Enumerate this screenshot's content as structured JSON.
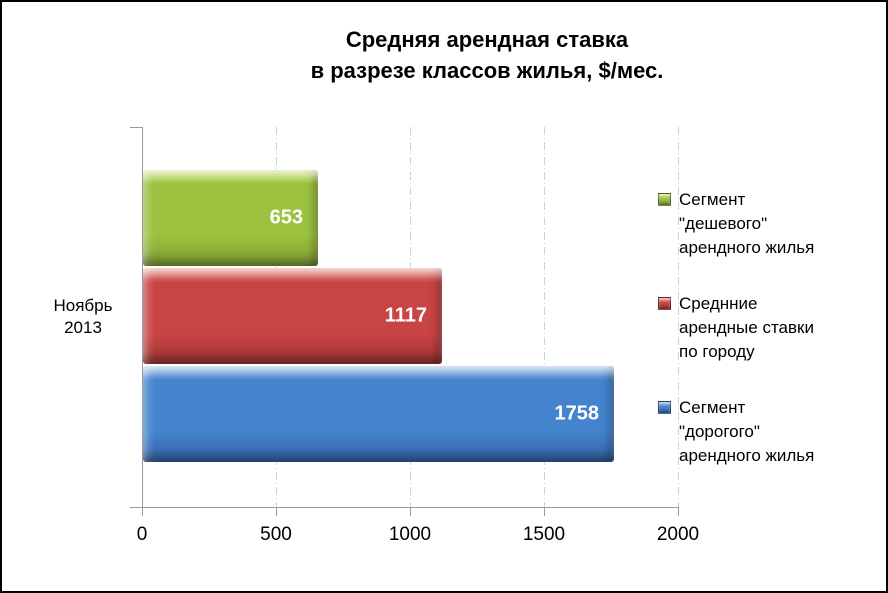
{
  "title": "Средняя арендная ставка\nв разрезе классов жилья, $/мес.",
  "chart_data": {
    "type": "bar",
    "orientation": "horizontal",
    "categories": [
      "Ноябрь\n2013"
    ],
    "series": [
      {
        "name": "Сегмент\n\"дешевого\"\nарендного жилья",
        "values": [
          653
        ],
        "color": "#9CC23F",
        "color_light": "#C9E07E",
        "color_dark": "#7C9B32"
      },
      {
        "name": "Среднние\nарендные ставки\nпо городу",
        "values": [
          1117
        ],
        "color": "#C94444",
        "color_light": "#E28C84",
        "color_dark": "#9E3333"
      },
      {
        "name": "Сегмент\n\"дорогого\"\nарендного жилья",
        "values": [
          1758
        ],
        "color": "#4484CE",
        "color_light": "#90B6E4",
        "color_dark": "#355FA3"
      }
    ],
    "xlim": [
      0,
      2000
    ],
    "x_ticks": [
      "0",
      "500",
      "1000",
      "1500",
      "2000"
    ],
    "data_labels": [
      "653",
      "1117",
      "1758"
    ],
    "grid": "vertical-dash-dot",
    "legend_position": "right"
  },
  "colors": {
    "background": "#FFFFFF",
    "border": "#000000",
    "axis": "#9A9A9A",
    "gridline": "#BCD6EC",
    "bar_label_text": "#FFFFFF"
  }
}
